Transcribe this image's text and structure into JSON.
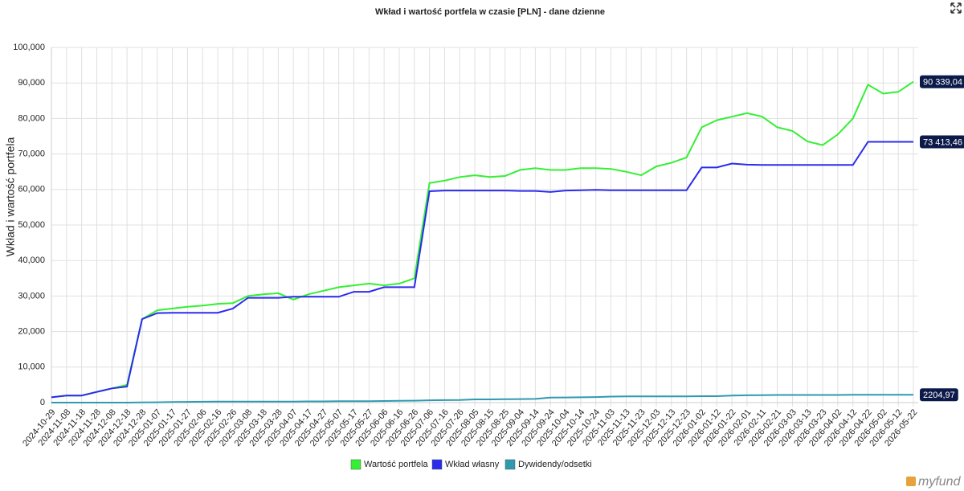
{
  "chart_data": {
    "type": "line",
    "title": "Wkład i wartość portfela w czasie [PLN] - dane dzienne",
    "y_label": "Wkład i wartość portfela",
    "x": [
      "2024-10-29",
      "2024-11-08",
      "2024-11-18",
      "2024-11-28",
      "2024-12-08",
      "2024-12-18",
      "2024-12-28",
      "2025-01-07",
      "2025-01-17",
      "2025-01-27",
      "2025-02-06",
      "2025-02-16",
      "2025-02-26",
      "2025-03-08",
      "2025-03-18",
      "2025-03-28",
      "2025-04-07",
      "2025-04-17",
      "2025-04-27",
      "2025-05-07",
      "2025-05-17",
      "2025-05-27",
      "2025-06-06",
      "2025-06-16",
      "2025-06-26",
      "2025-07-06",
      "2025-07-16",
      "2025-07-26",
      "2025-08-05",
      "2025-08-15",
      "2025-08-25",
      "2025-09-04",
      "2025-09-14",
      "2025-09-24",
      "2025-10-04",
      "2025-10-14",
      "2025-10-24",
      "2025-11-03",
      "2025-11-13",
      "2025-11-23",
      "2025-12-03",
      "2025-12-13",
      "2025-12-23",
      "2026-01-02",
      "2026-01-12",
      "2026-01-22",
      "2026-02-01",
      "2026-02-11",
      "2026-02-21",
      "2026-03-03",
      "2026-03-13",
      "2026-03-23",
      "2026-04-02",
      "2026-04-12",
      "2026-04-22",
      "2026-05-02",
      "2026-05-12",
      "2026-05-22"
    ],
    "series": [
      {
        "name": "Wartość portfela",
        "color": "#33f033",
        "values": [
          1500,
          2000,
          2000,
          3000,
          4000,
          5000,
          23500,
          26000,
          26500,
          27000,
          27300,
          27800,
          28000,
          30000,
          30500,
          30800,
          29000,
          30500,
          31500,
          32500,
          33000,
          33500,
          33000,
          33500,
          35000,
          61800,
          62500,
          63500,
          64000,
          63500,
          63800,
          65500,
          66000,
          65500,
          65500,
          66000,
          66000,
          65800,
          65000,
          64000,
          66500,
          67500,
          69000,
          77500,
          79500,
          80500,
          81500,
          80500,
          77500,
          76500,
          73500,
          72500,
          75500,
          80000,
          89500,
          87000,
          87500,
          90339.04
        ],
        "value_labels": [
          null,
          null,
          null,
          null,
          null,
          null,
          null,
          null,
          null,
          null,
          null,
          null,
          null,
          null,
          null,
          null,
          null,
          null,
          null,
          null,
          null,
          null,
          null,
          null,
          null,
          null,
          null,
          null,
          null,
          null,
          null,
          null,
          null,
          null,
          null,
          null,
          null,
          null,
          null,
          null,
          null,
          null,
          null,
          null,
          null,
          null,
          null,
          null,
          null,
          null,
          null,
          null,
          null,
          null,
          null,
          null,
          null,
          "90 339,04"
        ]
      },
      {
        "name": "Wkład własny",
        "color": "#2b2bee",
        "values": [
          1500,
          2000,
          2000,
          3000,
          4000,
          4500,
          23500,
          25200,
          25300,
          25300,
          25300,
          25300,
          26500,
          29500,
          29500,
          29500,
          29800,
          29800,
          29800,
          29800,
          31200,
          31200,
          32500,
          32500,
          32500,
          59500,
          59700,
          59700,
          59700,
          59700,
          59700,
          59600,
          59600,
          59300,
          59700,
          59800,
          59900,
          59800,
          59800,
          59800,
          59800,
          59800,
          59800,
          66200,
          66200,
          67300,
          67000,
          66900,
          66900,
          66900,
          66900,
          66900,
          66900,
          66900,
          73413.46,
          73413.46,
          73413.46,
          73413.46
        ],
        "value_labels": [
          null,
          null,
          null,
          null,
          null,
          null,
          null,
          null,
          null,
          null,
          null,
          null,
          null,
          null,
          null,
          null,
          null,
          null,
          null,
          null,
          null,
          null,
          null,
          null,
          null,
          null,
          null,
          null,
          null,
          null,
          null,
          null,
          null,
          null,
          null,
          null,
          null,
          null,
          null,
          null,
          null,
          null,
          null,
          null,
          null,
          null,
          null,
          null,
          null,
          null,
          null,
          null,
          null,
          null,
          null,
          null,
          null,
          "73 413,46"
        ]
      },
      {
        "name": "Dywidendy/odsetki",
        "color": "#2e9ab0",
        "values": [
          0,
          0,
          0,
          0,
          0,
          0,
          50,
          100,
          150,
          200,
          250,
          300,
          300,
          300,
          300,
          300,
          300,
          350,
          350,
          400,
          400,
          400,
          450,
          500,
          550,
          650,
          700,
          750,
          900,
          900,
          950,
          1000,
          1050,
          1400,
          1450,
          1500,
          1550,
          1700,
          1750,
          1750,
          1750,
          1750,
          1750,
          1800,
          1800,
          2000,
          2050,
          2100,
          2150,
          2150,
          2150,
          2150,
          2150,
          2200,
          2200,
          2200,
          2200,
          2204.97
        ],
        "value_labels": [
          null,
          null,
          null,
          null,
          null,
          null,
          null,
          null,
          null,
          null,
          null,
          null,
          null,
          null,
          null,
          null,
          null,
          null,
          null,
          null,
          null,
          null,
          null,
          null,
          null,
          null,
          null,
          null,
          null,
          null,
          null,
          null,
          null,
          null,
          null,
          null,
          null,
          null,
          null,
          null,
          null,
          null,
          null,
          null,
          null,
          null,
          null,
          null,
          null,
          null,
          null,
          null,
          null,
          null,
          null,
          null,
          null,
          "2204,97"
        ]
      }
    ],
    "ylim": [
      0,
      100000
    ],
    "yticks": [
      0,
      {
        "value": 10000,
        "label": "10,000"
      },
      {
        "value": 20000,
        "label": "20,000"
      },
      {
        "value": 30000,
        "label": "30,000"
      },
      {
        "value": 40000,
        "label": "40,000"
      },
      {
        "value": 50000,
        "label": "50,000"
      },
      {
        "value": 60000,
        "label": "60,000"
      },
      {
        "value": 70000,
        "label": "70,000"
      },
      {
        "value": 80000,
        "label": "80,000"
      },
      {
        "value": 90000,
        "label": "90,000"
      },
      {
        "value": 100000,
        "label": "100,000"
      }
    ],
    "grid": true,
    "legend": "bottom"
  },
  "brand": "myfund"
}
